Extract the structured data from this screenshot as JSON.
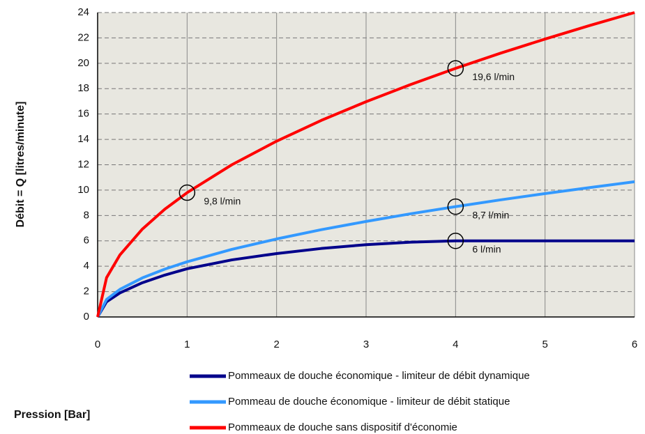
{
  "chart_data": {
    "type": "line",
    "x_label": "Pression [Bar]",
    "y_label": "Débit = Q [litres/minute]",
    "x": [
      0,
      0.1,
      0.25,
      0.5,
      0.75,
      1,
      1.5,
      2,
      2.5,
      3,
      3.5,
      4,
      4.5,
      5,
      5.5,
      6
    ],
    "series": [
      {
        "name": "Pommeaux de douche économique - limiteur de débit dynamique",
        "color": "#00008b",
        "values": [
          0,
          1.2,
          1.9,
          2.7,
          3.3,
          3.8,
          4.5,
          5.0,
          5.4,
          5.7,
          5.9,
          6.0,
          6.0,
          6.0,
          6.0,
          6.0
        ]
      },
      {
        "name": "Pommeau de douche économique - limiteur de débit statique",
        "color": "#3399ff",
        "values": [
          0,
          1.38,
          2.18,
          3.08,
          3.77,
          4.35,
          5.33,
          6.15,
          6.88,
          7.53,
          8.14,
          8.7,
          9.23,
          9.73,
          10.2,
          10.66
        ]
      },
      {
        "name": "Pommeaux de douche sans dispositif d'économie",
        "color": "#ff0000",
        "values": [
          0,
          3.1,
          4.9,
          6.93,
          8.49,
          9.8,
          12.0,
          13.86,
          15.5,
          16.97,
          18.33,
          19.6,
          20.79,
          21.91,
          22.98,
          24.0
        ]
      }
    ],
    "annotations": [
      {
        "text": "9,8 l/min",
        "x": 1,
        "y": 9.8
      },
      {
        "text": "19,6 l/min",
        "x": 4,
        "y": 19.6
      },
      {
        "text": "8,7 l/min",
        "x": 4,
        "y": 8.7
      },
      {
        "text": "6 l/min",
        "x": 4,
        "y": 6
      }
    ],
    "xlim": [
      0,
      6
    ],
    "xticks": [
      0,
      1,
      2,
      3,
      4,
      5,
      6
    ],
    "ylim": [
      0,
      24
    ],
    "yticks": [
      0,
      2,
      4,
      6,
      8,
      10,
      12,
      14,
      16,
      18,
      20,
      22,
      24
    ],
    "grid": true
  }
}
